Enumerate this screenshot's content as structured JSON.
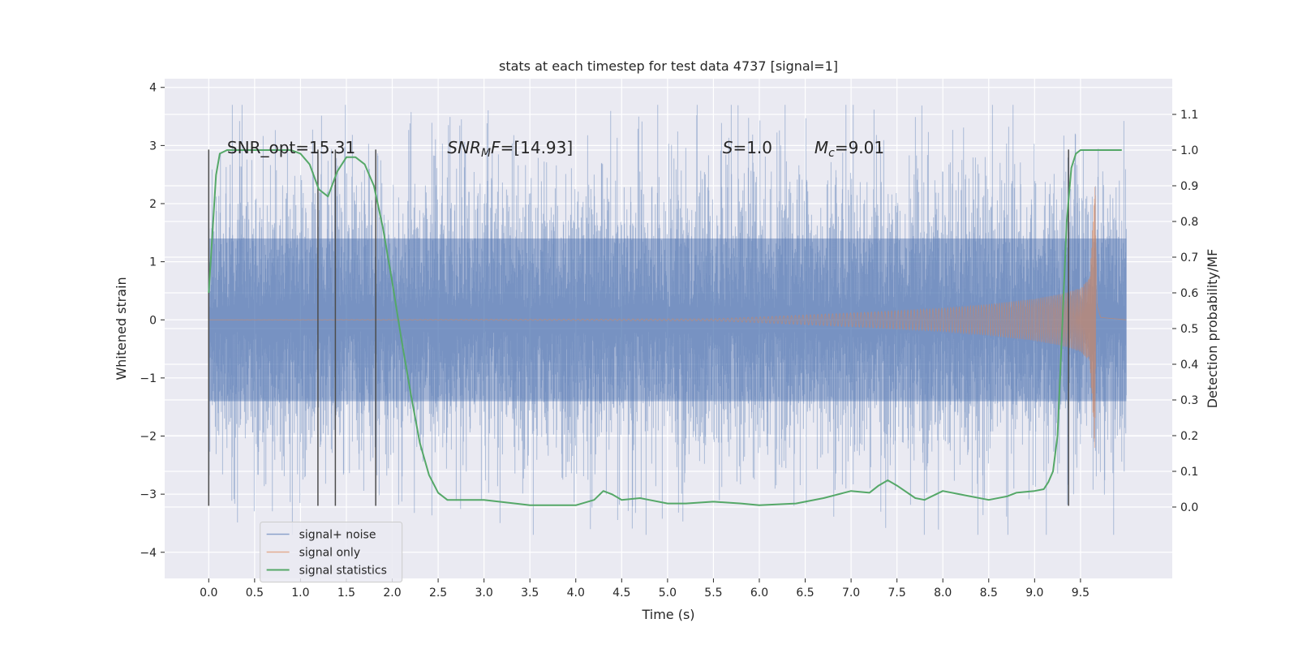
{
  "chart_data": {
    "type": "line",
    "title": "stats at each timestep for test data 4737 [signal=1]",
    "xlabel": "Time (s)",
    "ylabel": "Whitened strain",
    "y2label": "Detection probability/MF",
    "xlim": [
      -0.48,
      10.5
    ],
    "ylim": [
      -4.45,
      4.15
    ],
    "y2lim": [
      -0.2,
      1.2
    ],
    "x_ticks": [
      0.0,
      0.5,
      1.0,
      1.5,
      2.0,
      2.5,
      3.0,
      3.5,
      4.0,
      4.5,
      5.0,
      5.5,
      6.0,
      6.5,
      7.0,
      7.5,
      8.0,
      8.5,
      9.0,
      9.5
    ],
    "y_ticks": [
      -4,
      -3,
      -2,
      -1,
      0,
      1,
      2,
      3,
      4
    ],
    "y2_ticks": [
      0.0,
      0.1,
      0.2,
      0.3,
      0.4,
      0.5,
      0.6,
      0.7,
      0.8,
      0.9,
      1.0,
      1.1
    ],
    "grid": true,
    "legend_position": "bottom-left",
    "annotations": [
      {
        "text": "SNR_opt=15.31",
        "x": 0.2,
        "y": 2.95
      },
      {
        "text": "SNR_MF=[14.93]",
        "x": 2.6,
        "y": 2.95
      },
      {
        "text": "S=1.0",
        "x": 5.6,
        "y": 2.95
      },
      {
        "text": "M_c=9.01",
        "x": 6.6,
        "y": 2.95
      }
    ],
    "vlines": {
      "x": [
        0.0,
        1.19,
        1.38,
        1.82,
        9.37
      ],
      "ymin": -3.2,
      "ymax": 2.93
    },
    "series": [
      {
        "name": "signal+ noise",
        "color": "#4c72b0",
        "axis": "left",
        "kind": "noise",
        "x_range": [
          0.0,
          10.0
        ],
        "typical_peak": 2.2,
        "approx_std": 1.0
      },
      {
        "name": "signal only",
        "color": "#dd8452",
        "axis": "left",
        "kind": "chirp",
        "envelope": {
          "x": [
            0.0,
            3.0,
            5.5,
            6.0,
            7.0,
            8.0,
            8.5,
            9.0,
            9.3,
            9.5,
            9.6,
            9.66,
            9.68,
            9.72,
            10.0
          ],
          "y": [
            0.0,
            0.01,
            0.02,
            0.05,
            0.12,
            0.2,
            0.27,
            0.36,
            0.45,
            0.55,
            0.72,
            2.4,
            0.3,
            0.05,
            0.0
          ]
        }
      },
      {
        "name": "signal statistics",
        "color": "#55a868",
        "axis": "right",
        "x": [
          0.0,
          0.08,
          0.12,
          0.2,
          0.3,
          0.5,
          0.8,
          0.9,
          1.0,
          1.1,
          1.2,
          1.3,
          1.4,
          1.5,
          1.6,
          1.7,
          1.8,
          1.9,
          2.0,
          2.1,
          2.2,
          2.3,
          2.4,
          2.5,
          2.6,
          2.7,
          3.0,
          3.5,
          4.0,
          4.2,
          4.3,
          4.4,
          4.5,
          4.7,
          4.8,
          5.0,
          5.2,
          5.5,
          5.8,
          6.0,
          6.4,
          6.7,
          7.0,
          7.2,
          7.3,
          7.4,
          7.5,
          7.7,
          7.8,
          8.0,
          8.2,
          8.5,
          8.7,
          8.8,
          9.0,
          9.1,
          9.15,
          9.2,
          9.25,
          9.3,
          9.35,
          9.4,
          9.45,
          9.5,
          9.6,
          9.8,
          9.95
        ],
        "y": [
          0.6,
          0.93,
          0.99,
          1.0,
          1.0,
          1.0,
          1.0,
          1.0,
          0.99,
          0.96,
          0.89,
          0.87,
          0.94,
          0.98,
          0.98,
          0.96,
          0.9,
          0.78,
          0.63,
          0.47,
          0.32,
          0.18,
          0.09,
          0.04,
          0.02,
          0.02,
          0.02,
          0.005,
          0.005,
          0.02,
          0.045,
          0.035,
          0.02,
          0.025,
          0.02,
          0.01,
          0.01,
          0.015,
          0.01,
          0.005,
          0.01,
          0.025,
          0.045,
          0.04,
          0.06,
          0.075,
          0.06,
          0.025,
          0.02,
          0.045,
          0.035,
          0.02,
          0.03,
          0.04,
          0.045,
          0.05,
          0.07,
          0.1,
          0.2,
          0.5,
          0.8,
          0.95,
          0.99,
          1.0,
          1.0,
          1.0,
          1.0
        ]
      }
    ]
  }
}
